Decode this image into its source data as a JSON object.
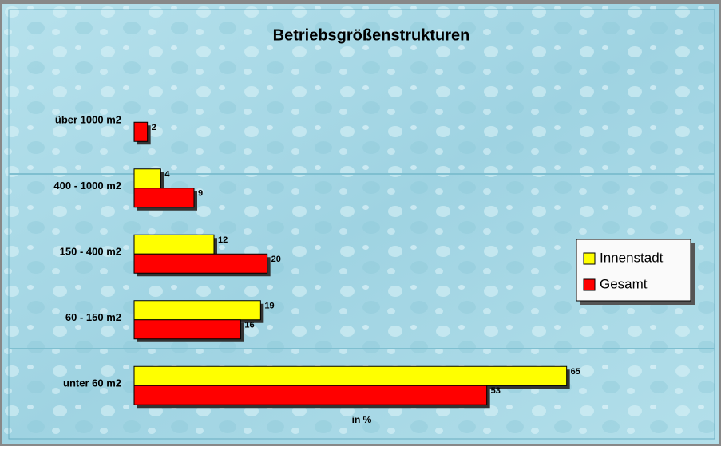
{
  "chart_data": {
    "type": "bar",
    "orientation": "horizontal",
    "title": "Betriebsgrößenstrukturen",
    "xlabel": "in %",
    "categories": [
      "über 1000 m2",
      "400 - 1000 m2",
      "150 - 400 m2",
      "60 - 150 m2",
      "unter 60 m2"
    ],
    "series": [
      {
        "name": "Innenstadt",
        "color": "#ffff00",
        "values": [
          null,
          4,
          12,
          19,
          65
        ]
      },
      {
        "name": "Gesamt",
        "color": "#ff0000",
        "values": [
          2,
          9,
          20,
          16,
          53
        ]
      }
    ],
    "xlim": [
      0,
      87
    ],
    "legend": "right"
  }
}
